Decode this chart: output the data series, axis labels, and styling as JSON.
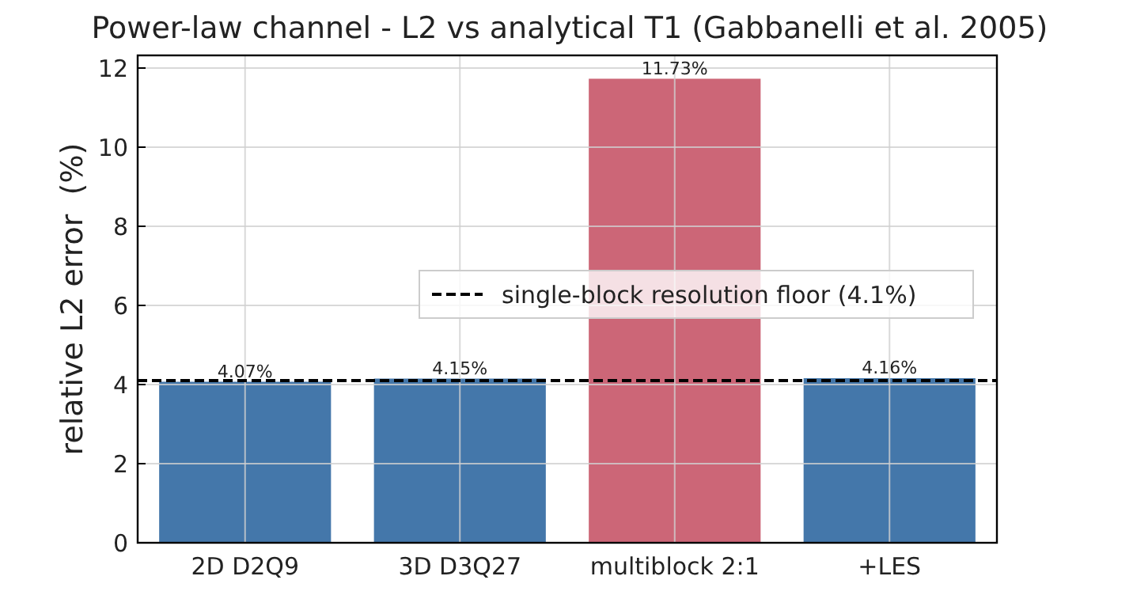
{
  "chart_data": {
    "type": "bar",
    "title": "Power-law channel - L2 vs analytical T1 (Gabbanelli et al. 2005)",
    "ylabel": "relative L2 error  (%)",
    "categories": [
      "2D D2Q9",
      "3D D3Q27",
      "multiblock 2:1",
      "+LES"
    ],
    "values": [
      4.07,
      4.15,
      11.73,
      4.16
    ],
    "colors": [
      "#4477aa",
      "#4477aa",
      "#cc6677",
      "#4477aa"
    ],
    "value_labels": [
      "4.07%",
      "4.15%",
      "11.73%",
      "4.16%"
    ],
    "ylim": [
      0,
      12.32
    ],
    "yticks": [
      0,
      2,
      4,
      6,
      8,
      10,
      12
    ],
    "grid": true,
    "legend": "right",
    "ref_lines": [
      {
        "axis": "y",
        "value": 4.1,
        "label": "single-block resolution floor (4.1%)",
        "color": "#000000",
        "line_style": "dashed"
      }
    ]
  }
}
